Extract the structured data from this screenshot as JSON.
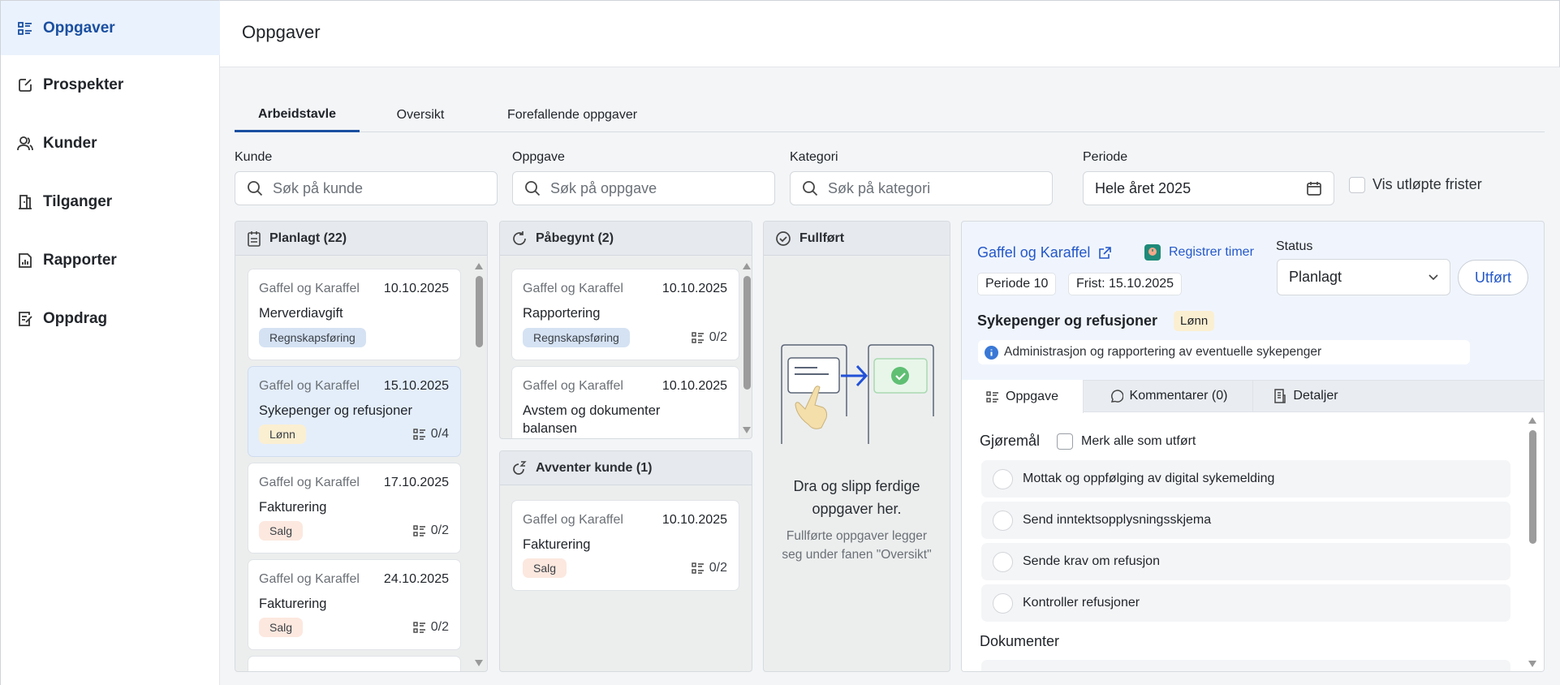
{
  "sidebar": {
    "items": [
      {
        "label": "Oppgaver",
        "icon": "task-list-icon",
        "active": true
      },
      {
        "label": "Prospekter",
        "icon": "edit-note-icon"
      },
      {
        "label": "Kunder",
        "icon": "users-icon"
      },
      {
        "label": "Tilganger",
        "icon": "door-icon"
      },
      {
        "label": "Rapporter",
        "icon": "report-chart-icon"
      },
      {
        "label": "Oppdrag",
        "icon": "edit-checklist-icon"
      }
    ]
  },
  "header": {
    "title": "Oppgaver"
  },
  "tabs": [
    {
      "label": "Arbeidstavle",
      "active": true
    },
    {
      "label": "Oversikt"
    },
    {
      "label": "Forefallende oppgaver"
    }
  ],
  "filters": {
    "kunde": {
      "label": "Kunde",
      "placeholder": "Søk på kunde"
    },
    "oppgave": {
      "label": "Oppgave",
      "placeholder": "Søk på oppgave"
    },
    "kategori": {
      "label": "Kategori",
      "placeholder": "Søk på kategori"
    },
    "periode": {
      "label": "Periode",
      "value": "Hele året 2025"
    },
    "expired": {
      "label": "Vis utløpte frister",
      "checked": false
    }
  },
  "colors": {
    "accent": "#1a4fa0",
    "tag_regnskap": "#d5e2f3",
    "tag_lonn": "#fbefd2",
    "tag_salg": "#fce8df"
  },
  "columns": {
    "planlagt": {
      "title": "Planlagt (22)",
      "cards": [
        {
          "customer": "Gaffel og Karaffel",
          "date": "10.10.2025",
          "title": "Merverdiavgift",
          "tag": "Regnskapsføring",
          "count": ""
        },
        {
          "customer": "Gaffel og Karaffel",
          "date": "15.10.2025",
          "title": "Sykepenger og refusjoner",
          "tag": "Lønn",
          "count": "0/4"
        },
        {
          "customer": "Gaffel og Karaffel",
          "date": "17.10.2025",
          "title": "Fakturering",
          "tag": "Salg",
          "count": "0/2"
        },
        {
          "customer": "Gaffel og Karaffel",
          "date": "24.10.2025",
          "title": "Fakturering",
          "tag": "Salg",
          "count": "0/2"
        }
      ]
    },
    "pabegynt": {
      "title": "Påbegynt (2)",
      "cards": [
        {
          "customer": "Gaffel og Karaffel",
          "date": "10.10.2025",
          "title": "Rapportering",
          "tag": "Regnskapsføring",
          "count": "0/2"
        },
        {
          "customer": "Gaffel og Karaffel",
          "date": "10.10.2025",
          "title": "Avstem og dokumenter balansen"
        }
      ]
    },
    "avventer": {
      "title": "Avventer kunde (1)",
      "cards": [
        {
          "customer": "Gaffel og Karaffel",
          "date": "10.10.2025",
          "title": "Fakturering",
          "tag": "Salg",
          "count": "0/2"
        }
      ]
    },
    "fullfort": {
      "title": "Fullført",
      "empty_title": "Dra og slipp ferdige oppgaver her.",
      "empty_text": "Fullførte oppgaver legger seg under fanen \"Oversikt\""
    }
  },
  "detail": {
    "customer": "Gaffel og Karaffel",
    "register_time": "Registrer timer",
    "status_label": "Status",
    "status_value": "Planlagt",
    "done_button": "Utført",
    "period": "Periode 10",
    "deadline": "Frist: 15.10.2025",
    "title": "Sykepenger og refusjoner",
    "tag": "Lønn",
    "info": "Administrasjon og rapportering av eventuelle sykepenger",
    "tabs": [
      {
        "label": "Oppgave",
        "active": true
      },
      {
        "label": "Kommentarer (0)"
      },
      {
        "label": "Detaljer"
      }
    ],
    "todos_heading": "Gjøremål",
    "mark_all": "Merk alle som utført",
    "todos": [
      "Mottak og oppfølging av digital sykemelding",
      "Send inntektsopplysningsskjema",
      "Sende krav om refusjon",
      "Kontroller refusjoner"
    ],
    "documents_heading": "Dokumenter"
  }
}
